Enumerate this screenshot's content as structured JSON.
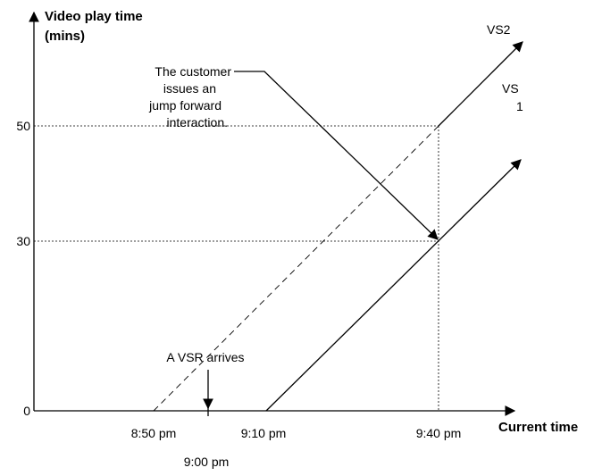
{
  "y_axis": {
    "label": [
      "Video play time",
      "(mins)"
    ],
    "ticks": [
      "0",
      "30",
      "50"
    ]
  },
  "x_axis": {
    "label": "Current time",
    "ticks": [
      "8:50 pm",
      "9:00 pm",
      "9:10 pm",
      "9:40 pm"
    ]
  },
  "series": [
    {
      "label": [
        "VS2"
      ]
    },
    {
      "label": [
        "VS",
        "1"
      ]
    }
  ],
  "annotations": {
    "customer": [
      "The customer",
      "issues an",
      "jump forward",
      "interaction."
    ],
    "arrival": "A VSR arrives"
  }
}
